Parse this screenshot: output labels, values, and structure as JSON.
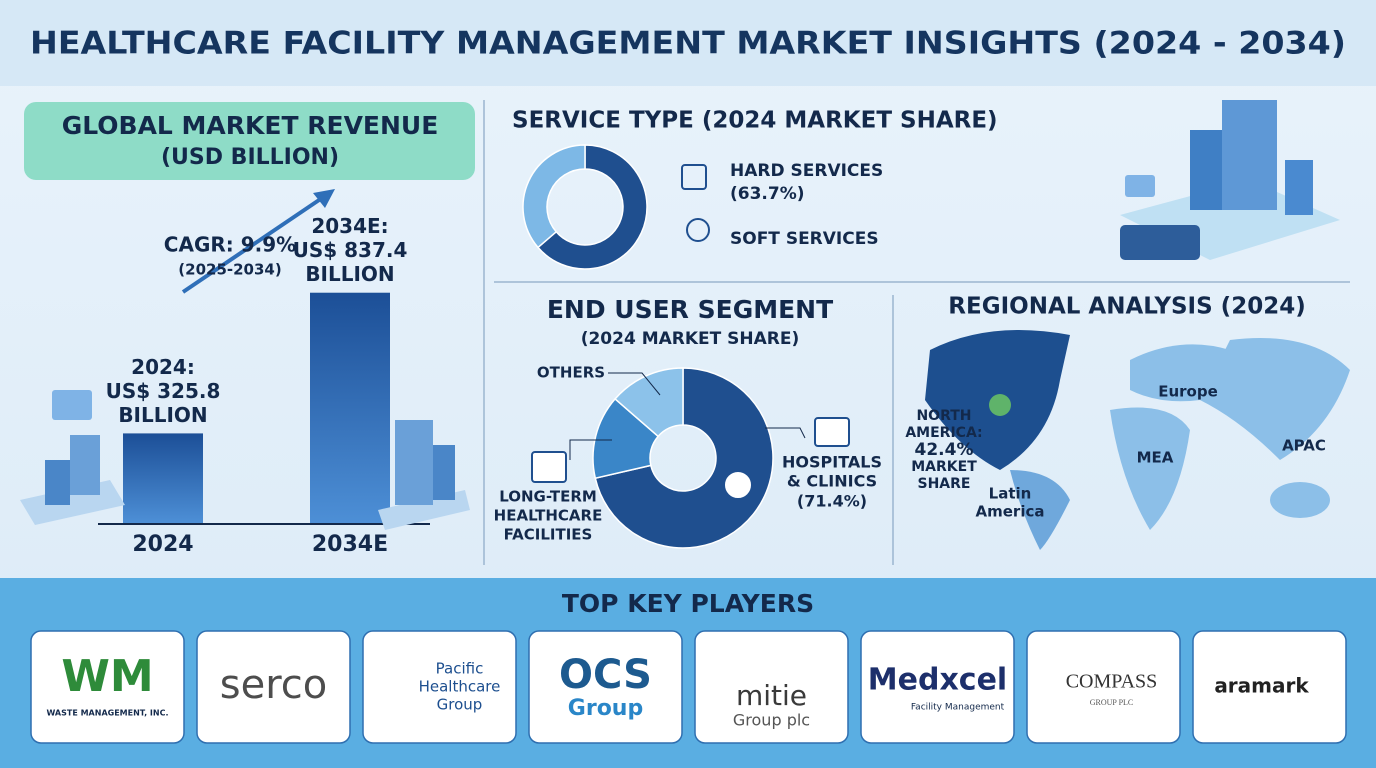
{
  "header": {
    "title": "HEALTHCARE FACILITY MANAGEMENT MARKET INSIGHTS (2024 - 2034)"
  },
  "revenue": {
    "title": "GLOBAL MARKET REVENUE",
    "unit": "(USD BILLION)",
    "cagr": "CAGR: 9.9%",
    "cagr_period": "(2025-2034)",
    "color": "#1f5aa0",
    "bars": [
      {
        "category": "2024",
        "value": 325.8,
        "label_lines": [
          "2024:",
          "US$ 325.8",
          "BILLION"
        ]
      },
      {
        "category": "2034E",
        "value": 837.4,
        "label_lines": [
          "2034E:",
          "US$ 837.4",
          "BILLION"
        ]
      }
    ]
  },
  "service_type": {
    "title": "SERVICE TYPE (2024 MARKET SHARE)",
    "slices": [
      {
        "name": "HARD SERVICES",
        "value": 63.7,
        "value_label": "(63.7%)",
        "color": "#1f4f8f"
      },
      {
        "name": "SOFT SERVICES",
        "value": 36.3,
        "color": "#7db8e6"
      }
    ]
  },
  "end_user": {
    "title": "END USER SEGMENT",
    "subtitle": "(2024 MARKET SHARE)",
    "slices": [
      {
        "name_lines": [
          "HOSPITALS",
          "& CLINICS"
        ],
        "value": 71.4,
        "value_label": "(71.4%)",
        "color": "#1f4f8f"
      },
      {
        "name_lines": [
          "LONG-TERM",
          "HEALTHCARE",
          "FACILITIES"
        ],
        "value": 15,
        "color": "#3a86c8"
      },
      {
        "name_lines": [
          "OTHERS"
        ],
        "value": 13.6,
        "color": "#8cc2ea"
      }
    ]
  },
  "regional": {
    "title": "REGIONAL ANALYSIS (2024)",
    "highlight_lines": [
      "NORTH",
      "AMERICA:",
      "42.4%",
      "MARKET",
      "SHARE"
    ],
    "regions": [
      {
        "lines": [
          "Europe"
        ]
      },
      {
        "lines": [
          "MEA"
        ]
      },
      {
        "lines": [
          "APAC"
        ]
      },
      {
        "lines": [
          "Latin",
          "America"
        ]
      }
    ]
  },
  "key_players": {
    "title": "TOP KEY PLAYERS",
    "logos": [
      {
        "lines": [
          "WM",
          "WASTE MANAGEMENT, INC."
        ]
      },
      {
        "lines": [
          "serco"
        ]
      },
      {
        "lines": [
          "Pacific",
          "Healthcare",
          "Group"
        ]
      },
      {
        "lines": [
          "OCS",
          "Group"
        ]
      },
      {
        "lines": [
          "mitie",
          "Group plc"
        ]
      },
      {
        "lines": [
          "Medxcel",
          "Facility Management"
        ]
      },
      {
        "lines": [
          "COMPASS",
          "GROUP PLC"
        ]
      },
      {
        "lines": [
          "aramark"
        ]
      }
    ]
  }
}
